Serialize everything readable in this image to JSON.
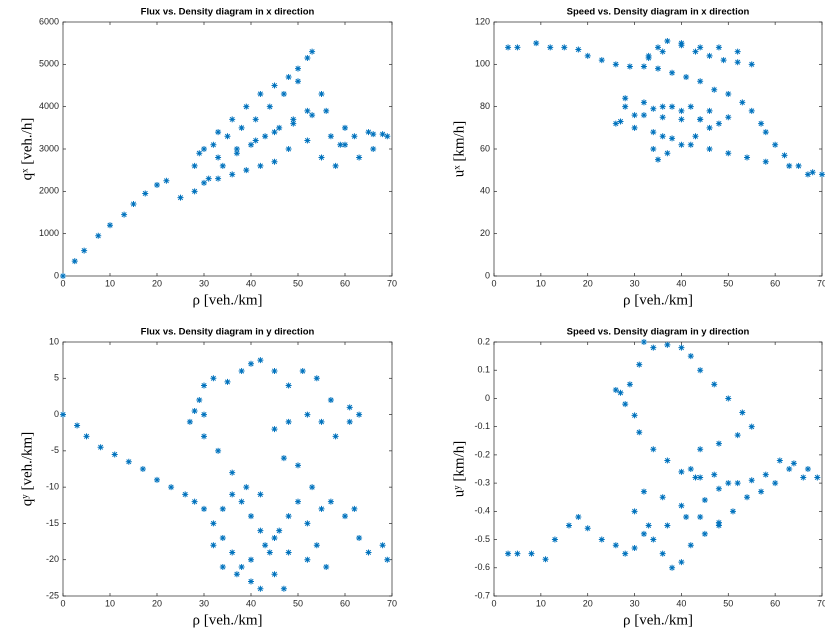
{
  "chart_data": [
    {
      "type": "scatter",
      "title": "Flux vs. Density diagram in x direction",
      "xlabel": "ρ [veh./km]",
      "ylabel": "qˣ [veh./h]",
      "color": "#0072bd",
      "xlim": [
        0,
        70
      ],
      "xticks": [
        0,
        10,
        20,
        30,
        40,
        50,
        60,
        70
      ],
      "ylim": [
        0,
        6000
      ],
      "yticks": [
        0,
        1000,
        2000,
        3000,
        4000,
        5000,
        6000
      ],
      "x": [
        0,
        2.5,
        4.5,
        7.5,
        10,
        13,
        15,
        17.5,
        20,
        22,
        25,
        28,
        31,
        34,
        37,
        40,
        43,
        46,
        49,
        52,
        55,
        56,
        57,
        59,
        62,
        65,
        68,
        69,
        66,
        63,
        60,
        58,
        55,
        52,
        48,
        45,
        42,
        39,
        36,
        33,
        30,
        28,
        30,
        33,
        36,
        39,
        42,
        45,
        48,
        50,
        52,
        53,
        50,
        47,
        44,
        41,
        38,
        35,
        32,
        29,
        33,
        37,
        41,
        45,
        49,
        53,
        60,
        66
      ],
      "values": [
        0,
        350,
        600,
        950,
        1200,
        1450,
        1700,
        1950,
        2150,
        2250,
        1850,
        2000,
        2300,
        2600,
        2900,
        3100,
        3300,
        3500,
        3700,
        3900,
        4300,
        3900,
        3300,
        3100,
        3300,
        3400,
        3350,
        3300,
        3000,
        2800,
        3100,
        2600,
        2800,
        3200,
        3000,
        2700,
        2600,
        2500,
        2400,
        2300,
        2200,
        2600,
        3000,
        3400,
        3700,
        4000,
        4300,
        4500,
        4700,
        4900,
        5150,
        5300,
        4600,
        4300,
        4000,
        3700,
        3500,
        3300,
        3100,
        2900,
        2800,
        3000,
        3200,
        3400,
        3600,
        3800,
        3500,
        3350
      ]
    },
    {
      "type": "scatter",
      "title": "Speed vs. Density diagram in x direction",
      "xlabel": "ρ [veh./km]",
      "ylabel": "uˣ [km/h]",
      "color": "#0072bd",
      "xlim": [
        0,
        70
      ],
      "xticks": [
        0,
        10,
        20,
        30,
        40,
        50,
        60,
        70
      ],
      "ylim": [
        0,
        120
      ],
      "yticks": [
        0,
        20,
        40,
        60,
        80,
        100,
        120
      ],
      "x": [
        3,
        5,
        9,
        12,
        15,
        18,
        20,
        23,
        26,
        29,
        32,
        35,
        38,
        41,
        44,
        47,
        50,
        53,
        55,
        57,
        58,
        60,
        62,
        65,
        68,
        70,
        67,
        63,
        58,
        54,
        50,
        46,
        42,
        38,
        34,
        30,
        27,
        26,
        30,
        34,
        38,
        42,
        46,
        50,
        48,
        44,
        40,
        36,
        32,
        28,
        28,
        32,
        36,
        40,
        44,
        46,
        43,
        40,
        37,
        35,
        34,
        36,
        33,
        35,
        37,
        40,
        43,
        46,
        49,
        52,
        55,
        52,
        48,
        44,
        40,
        36,
        33
      ],
      "values": [
        108,
        108,
        110,
        108,
        108,
        107,
        104,
        102,
        100,
        99,
        99,
        98,
        96,
        94,
        92,
        88,
        86,
        82,
        78,
        72,
        68,
        62,
        57,
        52,
        49,
        48,
        48,
        52,
        54,
        56,
        58,
        60,
        62,
        65,
        68,
        70,
        73,
        72,
        76,
        79,
        80,
        80,
        78,
        75,
        72,
        74,
        74,
        75,
        76,
        80,
        84,
        82,
        80,
        78,
        74,
        70,
        66,
        62,
        58,
        55,
        60,
        66,
        104,
        108,
        111,
        109,
        106,
        104,
        102,
        101,
        100,
        106,
        108,
        108,
        110,
        106,
        103
      ]
    },
    {
      "type": "scatter",
      "title": "Flux vs. Density diagram in y direction",
      "xlabel": "ρ [veh./km]",
      "ylabel": "qʸ [veh./km]",
      "color": "#0072bd",
      "xlim": [
        0,
        70
      ],
      "xticks": [
        0,
        10,
        20,
        30,
        40,
        50,
        60,
        70
      ],
      "ylim": [
        -25,
        10
      ],
      "yticks": [
        -25,
        -20,
        -15,
        -10,
        -5,
        0,
        5,
        10
      ],
      "x": [
        0,
        3,
        5,
        8,
        11,
        14,
        17,
        20,
        23,
        26,
        28,
        30,
        32,
        34,
        36,
        38,
        40,
        42,
        45,
        47,
        44,
        42,
        40,
        38,
        36,
        34,
        32,
        34,
        37,
        40,
        43,
        46,
        48,
        50,
        52,
        54,
        56,
        52,
        48,
        45,
        55,
        60,
        63,
        65,
        68,
        69,
        62,
        57,
        53,
        50,
        47,
        45,
        48,
        52,
        55,
        58,
        61,
        63,
        61,
        57,
        54,
        51,
        48,
        45,
        42,
        40,
        38,
        35,
        32,
        30,
        29,
        30,
        28,
        27,
        30,
        33,
        36,
        39,
        42
      ],
      "values": [
        0,
        -1.5,
        -3,
        -4.5,
        -5.5,
        -6.5,
        -7.5,
        -9,
        -10,
        -11,
        -12,
        -13,
        -15,
        -17,
        -19,
        -21,
        -23,
        -24,
        -22,
        -24,
        -19,
        -16,
        -14,
        -12,
        -11,
        -13,
        -18,
        -21,
        -22,
        -20,
        -18,
        -16,
        -14,
        -12,
        -15,
        -18,
        -21,
        -20,
        -19,
        -17,
        -13,
        -14,
        -17,
        -19,
        -18,
        -20,
        -13,
        -12,
        -10,
        -7,
        -6,
        -2,
        -1,
        0,
        -1,
        -3,
        -1,
        0,
        1,
        2,
        5,
        6,
        4,
        6,
        7.5,
        7,
        6,
        4.5,
        5,
        4,
        2,
        0,
        0.5,
        -1,
        -3,
        -5,
        -8,
        -10,
        -11
      ]
    },
    {
      "type": "scatter",
      "title": "Speed vs. Density diagram in y direction",
      "xlabel": "ρ [veh./km]",
      "ylabel": "uʸ [km/h]",
      "color": "#0072bd",
      "xlim": [
        0,
        70
      ],
      "xticks": [
        0,
        10,
        20,
        30,
        40,
        50,
        60,
        70
      ],
      "ylim": [
        -0.7,
        0.2
      ],
      "yticks": [
        -0.7,
        -0.6,
        -0.5,
        -0.4,
        -0.3,
        -0.2,
        -0.1,
        0,
        0.1,
        0.2
      ],
      "x": [
        3,
        5,
        8,
        11,
        13,
        16,
        18,
        20,
        23,
        26,
        28,
        30,
        32,
        34,
        36,
        38,
        40,
        42,
        45,
        48,
        51,
        48,
        44,
        40,
        36,
        32,
        30,
        33,
        37,
        41,
        45,
        48,
        52,
        55,
        58,
        61,
        63,
        66,
        69,
        67,
        64,
        60,
        57,
        54,
        50,
        47,
        44,
        42,
        44,
        48,
        52,
        55,
        53,
        50,
        47,
        44,
        42,
        40,
        37,
        34,
        32,
        31,
        29,
        27,
        26,
        28,
        30,
        31,
        34,
        37,
        40,
        43
      ],
      "values": [
        -0.55,
        -0.55,
        -0.55,
        -0.57,
        -0.5,
        -0.45,
        -0.42,
        -0.46,
        -0.5,
        -0.52,
        -0.55,
        -0.53,
        -0.48,
        -0.5,
        -0.55,
        -0.6,
        -0.58,
        -0.52,
        -0.48,
        -0.44,
        -0.4,
        -0.45,
        -0.42,
        -0.38,
        -0.35,
        -0.33,
        -0.4,
        -0.45,
        -0.45,
        -0.42,
        -0.36,
        -0.32,
        -0.3,
        -0.29,
        -0.27,
        -0.22,
        -0.25,
        -0.28,
        -0.28,
        -0.25,
        -0.23,
        -0.3,
        -0.33,
        -0.35,
        -0.3,
        -0.27,
        -0.28,
        -0.25,
        -0.18,
        -0.16,
        -0.13,
        -0.1,
        -0.05,
        0,
        0.05,
        0.1,
        0.15,
        0.18,
        0.19,
        0.18,
        0.2,
        0.12,
        0.05,
        0.02,
        0.03,
        -0.02,
        -0.06,
        -0.12,
        -0.18,
        -0.22,
        -0.26,
        -0.28
      ]
    }
  ]
}
